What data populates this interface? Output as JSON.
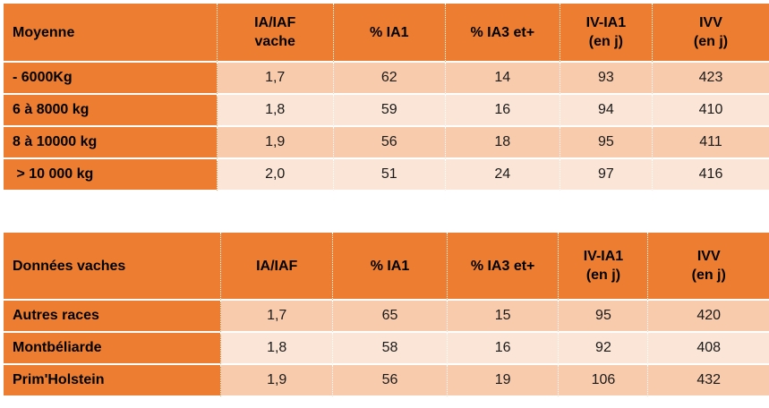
{
  "table1": {
    "headers": [
      "Moyenne",
      "IA/IAF\nvache",
      "% IA1",
      "% IA3 et+",
      "IV-IA1\n(en j)",
      "IVV\n(en j)"
    ],
    "rows": [
      [
        "- 6000Kg",
        "1,7",
        "62",
        "14",
        "93",
        "423"
      ],
      [
        "6 à 8000 kg",
        "1,8",
        "59",
        "16",
        "94",
        "410"
      ],
      [
        "8 à 10000 kg",
        "1,9",
        "56",
        "18",
        "95",
        "411"
      ],
      [
        " > 10 000 kg",
        "2,0",
        "51",
        "24",
        "97",
        "416"
      ]
    ]
  },
  "table2": {
    "headers": [
      "Données vaches",
      "IA/IAF",
      "% IA1",
      "% IA3 et+",
      "IV-IA1\n(en j)",
      "IVV\n(en j)"
    ],
    "rows": [
      [
        "Autres races",
        "1,7",
        "65",
        "15",
        "95",
        "420"
      ],
      [
        "Montbéliarde",
        "1,8",
        "58",
        "16",
        "92",
        "408"
      ],
      [
        "Prim'Holstein",
        "1,9",
        "56",
        "19",
        "106",
        "432"
      ]
    ]
  },
  "colors": {
    "header": "#ed7d31",
    "row_dark": "#f8cbad",
    "row_light": "#fbe5d6"
  }
}
